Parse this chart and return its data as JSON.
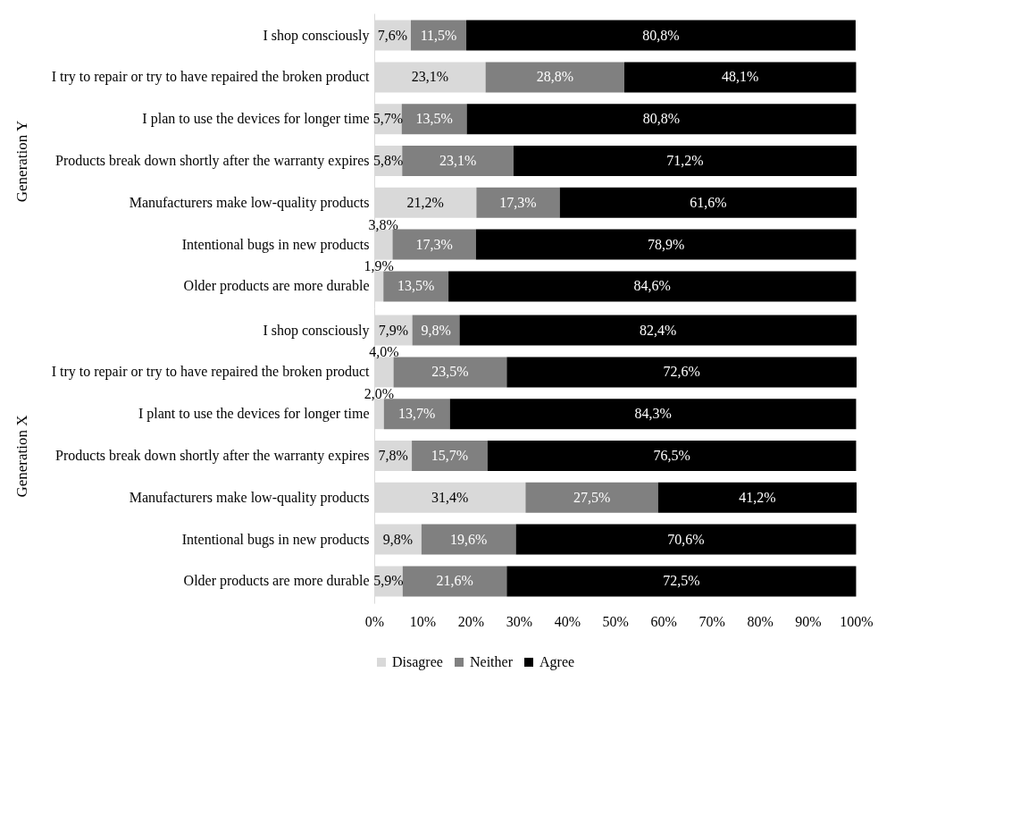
{
  "chart_data": [
    {
      "type": "bar",
      "orientation": "horizontal",
      "stacked": true,
      "ylabel": "Generation Y",
      "categories": [
        "I shop consciously",
        "I try to repair or try to have repaired the broken product",
        "I plan to use the devices for longer time",
        "Products break down shortly after the warranty expires",
        "Manufacturers make low-quality products",
        "Intentional bugs in new products",
        "Older products are more durable"
      ],
      "series": [
        {
          "color": "#d9d9d9",
          "values": [
            7.6,
            23.1,
            5.7,
            5.8,
            21.2,
            3.8,
            1.9
          ],
          "value_labels": [
            "7,6%",
            "23,1%",
            "5,7%",
            "5,8%",
            "21,2%",
            "3,8%",
            "1,9%"
          ]
        },
        {
          "color": "#808080",
          "values": [
            11.5,
            28.8,
            13.5,
            23.1,
            17.3,
            17.3,
            13.5
          ],
          "value_labels": [
            "11,5%",
            "28,8%",
            "13,5%",
            "23,1%",
            "17,3%",
            "17,3%",
            "13,5%"
          ]
        },
        {
          "color": "#000000",
          "values": [
            80.8,
            48.1,
            80.8,
            71.2,
            61.6,
            78.9,
            84.6
          ],
          "value_labels": [
            "80,8%",
            "48,1%",
            "80,8%",
            "71,2%",
            "61,6%",
            "78,9%",
            "84,6%"
          ]
        }
      ],
      "xlim": [
        0,
        100.1
      ],
      "tick_labels": "y",
      "grid": false,
      "legend": false
    },
    {
      "type": "bar",
      "orientation": "horizontal",
      "stacked": true,
      "ylabel": "Generation X",
      "categories": [
        "I shop consciously",
        "I try to repair or try to have repaired the broken product",
        "I plant to use the devices for longer time",
        "Products break down shortly after the warranty expires",
        "Manufacturers make low-quality products",
        "Intentional bugs in new products",
        "Older products are more durable"
      ],
      "series": [
        {
          "name": "Disagree",
          "color": "#d9d9d9",
          "values": [
            7.9,
            4.0,
            2.0,
            7.8,
            31.4,
            9.8,
            5.9
          ],
          "value_labels": [
            "7,9%",
            "4,0%",
            "2,0%",
            "7,8%",
            "31,4%",
            "9,8%",
            "5,9%"
          ]
        },
        {
          "name": "Neither",
          "color": "#808080",
          "values": [
            9.8,
            23.5,
            13.7,
            15.7,
            27.5,
            19.6,
            21.6
          ],
          "value_labels": [
            "9,8%",
            "23,5%",
            "13,7%",
            "15,7%",
            "27,5%",
            "19,6%",
            "21,6%"
          ]
        },
        {
          "name": "Agree",
          "color": "#000000",
          "values": [
            82.4,
            72.6,
            84.3,
            76.5,
            41.2,
            70.6,
            72.5
          ],
          "value_labels": [
            "82,4%",
            "72,6%",
            "84,3%",
            "76,5%",
            "41,2%",
            "70,6%",
            "72,5%"
          ]
        }
      ],
      "xlim": [
        0,
        100.1
      ],
      "xticks": [
        {
          "value": 0,
          "label": "0%"
        },
        {
          "value": 10,
          "label": "10%"
        },
        {
          "value": 20,
          "label": "20%"
        },
        {
          "value": 30,
          "label": "30%"
        },
        {
          "value": 40,
          "label": "40%"
        },
        {
          "value": 50,
          "label": "50%"
        },
        {
          "value": 60,
          "label": "60%"
        },
        {
          "value": 70,
          "label": "70%"
        },
        {
          "value": 80,
          "label": "80%"
        },
        {
          "value": 90,
          "label": "90%"
        },
        {
          "value": 100,
          "label": "100%"
        }
      ],
      "grid": false,
      "legend": "bottom"
    }
  ]
}
